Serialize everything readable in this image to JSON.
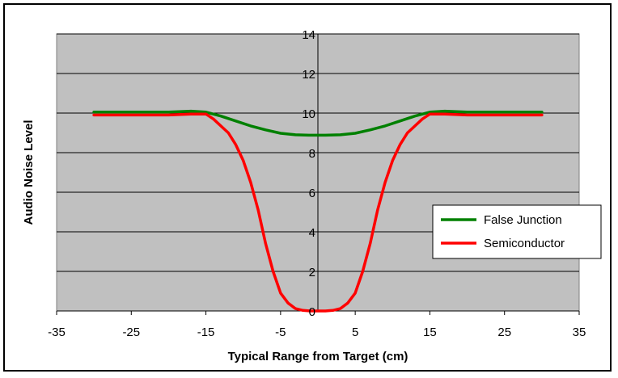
{
  "chart_data": {
    "type": "line",
    "title": "",
    "xlabel": "Typical Range from Target (cm)",
    "ylabel": "Audio Noise Level",
    "xlim": [
      -35,
      35
    ],
    "ylim": [
      0,
      14
    ],
    "x_ticks": [
      -35,
      -25,
      -15,
      -5,
      5,
      15,
      25,
      35
    ],
    "y_ticks": [
      0,
      2,
      4,
      6,
      8,
      10,
      12,
      14
    ],
    "grid": true,
    "plot_background": "#c0c0c0",
    "legend_position": "right",
    "series": [
      {
        "name": "False Junction",
        "color": "#008000",
        "points": [
          [
            -30,
            10.05
          ],
          [
            -20,
            10.05
          ],
          [
            -17,
            10.1
          ],
          [
            -15,
            10.05
          ],
          [
            -13,
            9.85
          ],
          [
            -11,
            9.6
          ],
          [
            -9,
            9.35
          ],
          [
            -7,
            9.15
          ],
          [
            -5,
            8.98
          ],
          [
            -3,
            8.9
          ],
          [
            -1,
            8.88
          ],
          [
            1,
            8.88
          ],
          [
            3,
            8.9
          ],
          [
            5,
            8.98
          ],
          [
            7,
            9.15
          ],
          [
            9,
            9.35
          ],
          [
            11,
            9.6
          ],
          [
            13,
            9.85
          ],
          [
            15,
            10.05
          ],
          [
            17,
            10.1
          ],
          [
            20,
            10.05
          ],
          [
            30,
            10.05
          ]
        ]
      },
      {
        "name": "Semiconductor",
        "color": "#ff0000",
        "points": [
          [
            -30,
            9.9
          ],
          [
            -20,
            9.9
          ],
          [
            -17,
            9.95
          ],
          [
            -15,
            9.95
          ],
          [
            -14,
            9.7
          ],
          [
            -13,
            9.35
          ],
          [
            -12,
            9.0
          ],
          [
            -11,
            8.4
          ],
          [
            -10,
            7.6
          ],
          [
            -9,
            6.5
          ],
          [
            -8,
            5.1
          ],
          [
            -7,
            3.4
          ],
          [
            -6,
            2.0
          ],
          [
            -5,
            0.9
          ],
          [
            -4,
            0.4
          ],
          [
            -3,
            0.12
          ],
          [
            -2,
            0.03
          ],
          [
            -1,
            0.0
          ],
          [
            0,
            0.0
          ],
          [
            1,
            0.0
          ],
          [
            2,
            0.03
          ],
          [
            3,
            0.12
          ],
          [
            4,
            0.4
          ],
          [
            5,
            0.9
          ],
          [
            6,
            2.0
          ],
          [
            7,
            3.4
          ],
          [
            8,
            5.1
          ],
          [
            9,
            6.5
          ],
          [
            10,
            7.6
          ],
          [
            11,
            8.4
          ],
          [
            12,
            9.0
          ],
          [
            13,
            9.35
          ],
          [
            14,
            9.7
          ],
          [
            15,
            9.95
          ],
          [
            17,
            9.95
          ],
          [
            20,
            9.9
          ],
          [
            30,
            9.9
          ]
        ]
      }
    ]
  }
}
